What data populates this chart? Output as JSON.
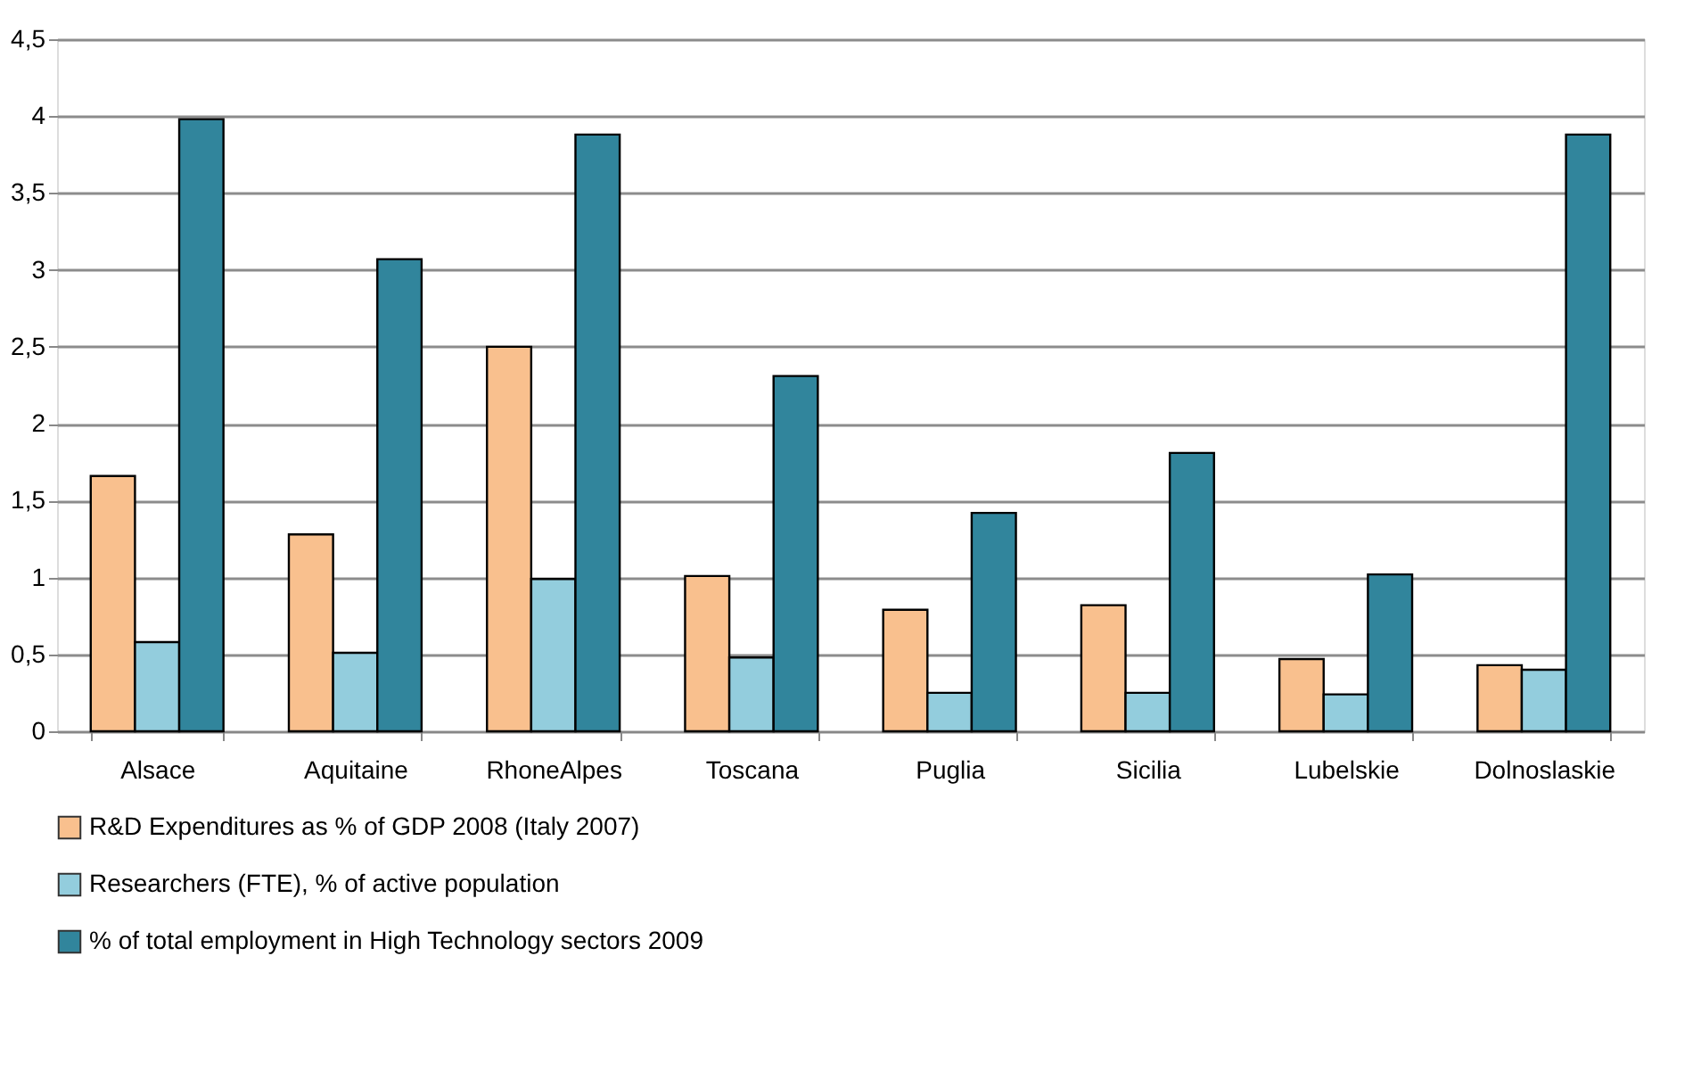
{
  "chart_data": {
    "type": "bar",
    "categories": [
      "Alsace",
      "Aquitaine",
      "RhoneAlpes",
      "Toscana",
      "Puglia",
      "Sicilia",
      "Lubelskie",
      "Dolnoslaskie"
    ],
    "series": [
      {
        "name": "R&D Expenditures as % of GDP 2008 (Italy 2007)",
        "color": "#f9c08e",
        "values": [
          1.66,
          1.28,
          2.5,
          1.01,
          0.79,
          0.82,
          0.47,
          0.43
        ]
      },
      {
        "name": "Researchers (FTE), % of active population",
        "color": "#93cddd",
        "values": [
          0.58,
          0.51,
          0.99,
          0.48,
          0.25,
          0.25,
          0.24,
          0.4
        ]
      },
      {
        "name": "% of total employment in High Technology sectors 2009",
        "color": "#31859c",
        "values": [
          3.98,
          3.07,
          3.88,
          2.31,
          1.42,
          1.81,
          1.02,
          3.88
        ]
      }
    ],
    "ylim": [
      0,
      4.5
    ],
    "yticks": [
      0,
      {
        "value": 0.5,
        "label": "0,5"
      },
      1,
      {
        "value": 1.5,
        "label": "1,5"
      },
      2,
      {
        "value": 2.5,
        "label": "2,5"
      },
      3,
      {
        "value": 3.5,
        "label": "3,5"
      },
      4,
      {
        "value": 4.5,
        "label": "4,5"
      }
    ],
    "grid": "y",
    "legend": "bottom"
  }
}
